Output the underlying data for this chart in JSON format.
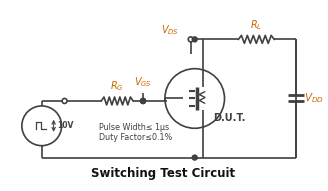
{
  "title": "Switching Test Circuit",
  "title_color": "#1a1a1a",
  "title_fontsize": 9,
  "bg_color": "#ffffff",
  "line_color": "#404040",
  "orange_color": "#cc6600",
  "label_fontsize": 7.5,
  "annotation_fontsize": 6.5,
  "pulse_text1": "Pulse Width≤ 1μs",
  "pulse_text2": "Duty Factor≤0.1%",
  "vdd_label": "V",
  "vdd_sub": "DD",
  "vds_label": "V",
  "vds_sub": "DS",
  "vgs_label": "V",
  "vgs_sub": "GS",
  "rg_label": "R",
  "rg_sub": "G",
  "rl_label": "R",
  "rl_sub": "L",
  "dut_label": "D.U.T.",
  "voltage_label": "10V"
}
